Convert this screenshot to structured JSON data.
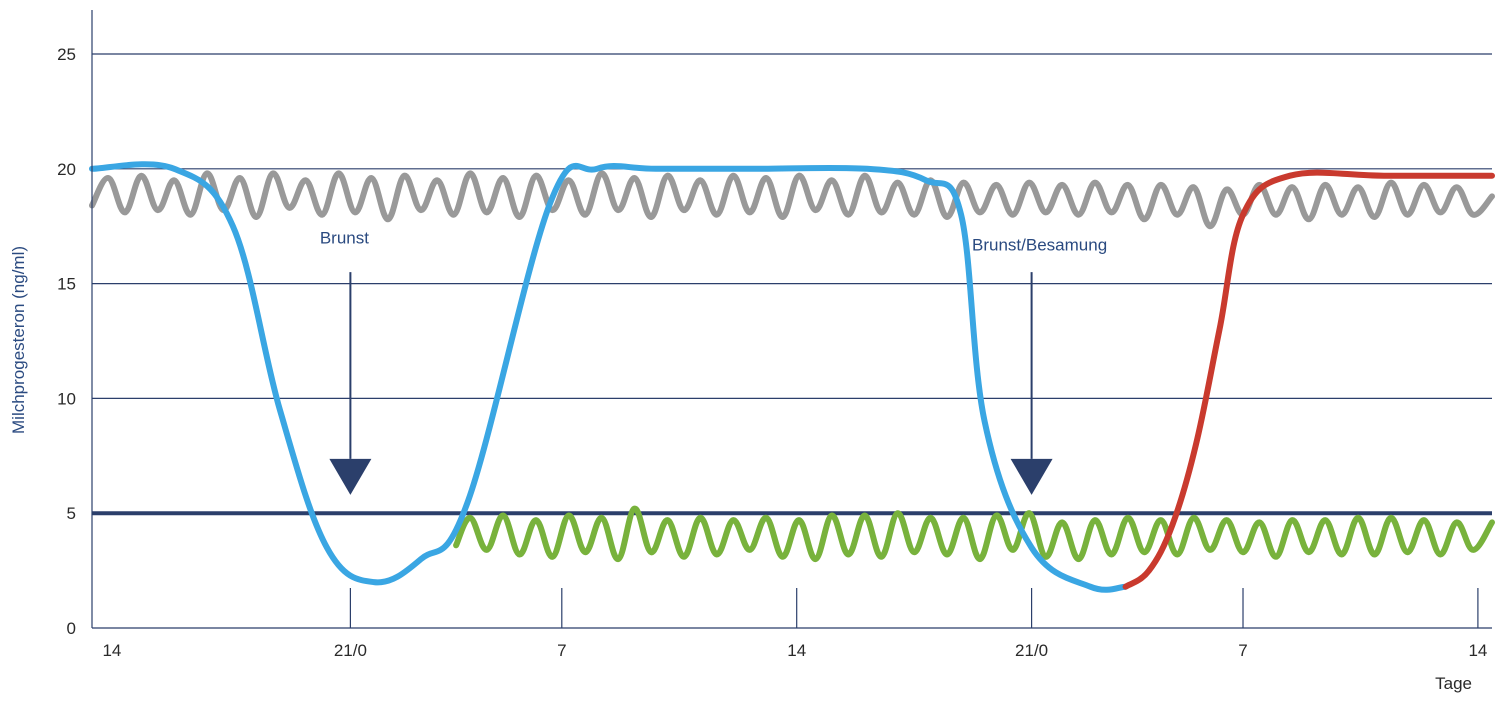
{
  "chart_data": {
    "type": "line",
    "title": "",
    "ylabel": "Milchprogesteron (ng/ml)",
    "xlabel": "Tage",
    "ylim": [
      0,
      26
    ],
    "xlim": [
      0,
      59.6
    ],
    "y_ticks": [
      0,
      5,
      10,
      15,
      20,
      25
    ],
    "grid": "horizontal",
    "x_ticks": [
      {
        "x": 0.7,
        "label": "14"
      },
      {
        "x": 11.0,
        "label": "21/0"
      },
      {
        "x": 20.0,
        "label": "7"
      },
      {
        "x": 30.0,
        "label": "14"
      },
      {
        "x": 40.0,
        "label": "21/0"
      },
      {
        "x": 49.0,
        "label": "7"
      },
      {
        "x": 59.0,
        "label": "14"
      }
    ],
    "threshold": {
      "y": 5,
      "color": "#2b3f6b"
    },
    "annotations": [
      {
        "label": "Brunst",
        "x": 11.0,
        "y_text": 17.0,
        "y_from": 15.5,
        "y_to": 5.8
      },
      {
        "label": "Brunst/Besamung",
        "x": 40.0,
        "y_text": 16.7,
        "y_from": 15.5,
        "y_to": 5.8
      }
    ],
    "series": [
      {
        "color": "#3aa6e3",
        "x": [
          0,
          3.5,
          6,
          8,
          10,
          12,
          14,
          16,
          19.5,
          21.5,
          24,
          28,
          33,
          35.5,
          37,
          38,
          40,
          42.5,
          44
        ],
        "y": [
          20,
          20,
          17.5,
          9.5,
          3.5,
          2,
          3,
          5.5,
          18.5,
          20,
          20,
          20,
          20,
          19.5,
          18,
          9,
          3.5,
          1.8,
          1.8
        ]
      },
      {
        "color": "#c93a2e",
        "x": [
          44,
          45,
          46,
          47,
          48,
          49,
          51,
          55,
          59.6
        ],
        "y": [
          1.8,
          2.5,
          4.5,
          8,
          13,
          18,
          19.7,
          19.7,
          19.7
        ]
      },
      {
        "color": "#999999",
        "x": [
          0,
          0.7,
          1.4,
          2.1,
          2.8,
          3.5,
          4.2,
          4.9,
          5.6,
          6.3,
          7.0,
          7.7,
          8.4,
          9.1,
          9.8,
          10.5,
          11.2,
          11.9,
          12.6,
          13.3,
          14.0,
          14.7,
          15.4,
          16.1,
          16.8,
          17.5,
          18.2,
          18.9,
          19.6,
          20.3,
          21.0,
          21.7,
          22.4,
          23.1,
          23.8,
          24.5,
          25.2,
          25.9,
          26.6,
          27.3,
          28.0,
          28.7,
          29.4,
          30.1,
          30.8,
          31.5,
          32.2,
          32.9,
          33.6,
          34.3,
          35.0,
          35.7,
          36.4,
          37.1,
          37.8,
          38.5,
          39.2,
          39.9,
          40.6,
          41.3,
          42.0,
          42.7,
          43.4,
          44.1,
          44.8,
          45.5,
          46.2,
          46.9,
          47.6,
          48.3,
          49.0,
          49.7,
          50.4,
          51.1,
          51.8,
          52.5,
          53.2,
          53.9,
          54.6,
          55.3,
          56.0,
          56.7,
          57.4,
          58.1,
          58.8,
          59.6
        ],
        "y": [
          18.4,
          19.6,
          18.1,
          19.7,
          18.2,
          19.5,
          18.0,
          19.8,
          18.2,
          19.6,
          17.9,
          19.8,
          18.3,
          19.5,
          18.0,
          19.8,
          18.1,
          19.6,
          17.8,
          19.7,
          18.2,
          19.5,
          18.0,
          19.8,
          18.1,
          19.6,
          17.9,
          19.7,
          18.2,
          19.5,
          18.0,
          19.8,
          18.2,
          19.6,
          17.9,
          19.7,
          18.2,
          19.5,
          18.0,
          19.7,
          18.1,
          19.6,
          17.9,
          19.7,
          18.2,
          19.5,
          18.0,
          19.7,
          18.1,
          19.4,
          18.0,
          19.5,
          17.9,
          19.4,
          18.1,
          19.3,
          18.0,
          19.4,
          18.1,
          19.3,
          18.0,
          19.4,
          18.1,
          19.3,
          17.8,
          19.3,
          18.0,
          19.2,
          17.5,
          19.1,
          18.0,
          19.3,
          18.0,
          19.2,
          17.8,
          19.3,
          18.0,
          19.2,
          17.9,
          19.4,
          18.0,
          19.3,
          18.1,
          19.2,
          18.0,
          18.8
        ],
        "points": [
          [
            0,
            18.5
          ],
          [
            0.4,
            19.6
          ],
          [
            1,
            18.1
          ],
          [
            1.6,
            19.7
          ],
          [
            2.3,
            18.2
          ],
          [
            3.0,
            19.5
          ],
          [
            3.7,
            18.0
          ],
          [
            4.4,
            19.8
          ],
          [
            5.1,
            18.2
          ],
          [
            5.8,
            19.6
          ],
          [
            6.5,
            17.9
          ],
          [
            7.2,
            19.8
          ],
          [
            7.9,
            18.3
          ],
          [
            8.6,
            19.5
          ],
          [
            9.3,
            18.0
          ],
          [
            10.0,
            19.8
          ],
          [
            10.7,
            18.1
          ],
          [
            11.4,
            19.6
          ],
          [
            12.1,
            17.8
          ],
          [
            12.8,
            19.7
          ],
          [
            13.5,
            18.2
          ],
          [
            14.2,
            19.5
          ],
          [
            14.9,
            18.0
          ],
          [
            15.6,
            19.8
          ],
          [
            16.3,
            18.1
          ],
          [
            17.0,
            19.6
          ],
          [
            17.7,
            17.9
          ],
          [
            18.4,
            19.7
          ],
          [
            19.1,
            18.2
          ],
          [
            19.8,
            19.5
          ],
          [
            20.5,
            18.0
          ],
          [
            21.2,
            19.8
          ],
          [
            21.9,
            18.2
          ],
          [
            22.6,
            19.6
          ],
          [
            23.3,
            17.9
          ],
          [
            24.0,
            19.7
          ],
          [
            24.7,
            18.2
          ],
          [
            25.4,
            19.5
          ],
          [
            26.1,
            18.0
          ],
          [
            26.8,
            19.7
          ],
          [
            27.5,
            18.1
          ],
          [
            28.2,
            19.6
          ],
          [
            28.9,
            17.9
          ],
          [
            29.6,
            19.7
          ],
          [
            30.3,
            18.2
          ],
          [
            31.0,
            19.5
          ],
          [
            31.7,
            18.0
          ],
          [
            32.4,
            19.7
          ],
          [
            33.1,
            18.1
          ],
          [
            33.8,
            19.4
          ],
          [
            34.5,
            18.0
          ],
          [
            35.2,
            19.5
          ],
          [
            35.9,
            17.9
          ],
          [
            36.6,
            19.4
          ],
          [
            37.3,
            18.1
          ],
          [
            38.0,
            19.3
          ],
          [
            38.7,
            18.0
          ],
          [
            39.4,
            19.4
          ],
          [
            40.1,
            18.1
          ],
          [
            40.8,
            19.3
          ],
          [
            41.5,
            18.0
          ],
          [
            42.2,
            19.4
          ],
          [
            42.9,
            18.1
          ],
          [
            43.6,
            19.3
          ],
          [
            44.3,
            17.8
          ],
          [
            45.0,
            19.3
          ],
          [
            45.7,
            18.0
          ],
          [
            46.4,
            19.2
          ],
          [
            47.1,
            17.5
          ],
          [
            47.8,
            19.1
          ],
          [
            48.5,
            18.0
          ],
          [
            49.2,
            19.3
          ],
          [
            49.9,
            18.0
          ],
          [
            50.6,
            19.2
          ],
          [
            51.3,
            17.8
          ],
          [
            52.0,
            19.3
          ],
          [
            52.7,
            18.0
          ],
          [
            53.4,
            19.2
          ],
          [
            54.1,
            17.9
          ],
          [
            54.8,
            19.4
          ],
          [
            55.5,
            18.0
          ],
          [
            56.2,
            19.3
          ],
          [
            56.9,
            18.1
          ],
          [
            57.6,
            19.2
          ],
          [
            58.3,
            18.0
          ],
          [
            59.0,
            18.6
          ],
          [
            59.6,
            18.8
          ]
        ]
      },
      {
        "color": "#78b23c",
        "x": [
          15.5,
          16.1,
          16.8,
          17.5,
          18.2,
          18.9,
          19.6,
          20.3,
          21.0,
          21.7,
          22.4,
          23.1,
          23.8,
          24.5,
          25.2,
          25.9,
          26.6,
          27.3,
          28.0,
          28.7,
          29.4,
          30.1,
          30.8,
          31.5,
          32.2,
          32.9,
          33.6,
          34.3,
          35.0,
          35.7,
          36.4,
          37.1,
          37.8,
          38.5,
          39.2,
          39.9,
          40.6,
          41.3,
          42.0,
          42.7,
          43.4,
          44.1,
          44.8,
          45.5,
          46.2,
          46.9,
          47.6,
          48.3,
          49.0,
          49.7,
          50.4,
          51.1,
          51.8,
          52.5,
          53.2,
          53.9,
          54.6,
          55.3,
          56.0,
          56.7,
          57.4,
          58.1,
          58.8,
          59.6
        ],
        "y": [
          3.6,
          4.8,
          3.4,
          4.9,
          3.2,
          4.7,
          3.1,
          4.9,
          3.3,
          4.8,
          3.0,
          5.2,
          3.3,
          4.7,
          3.1,
          4.8,
          3.2,
          4.7,
          3.4,
          4.8,
          3.1,
          4.7,
          3.0,
          4.9,
          3.2,
          4.9,
          3.1,
          5.0,
          3.3,
          4.8,
          3.2,
          4.8,
          3.0,
          4.9,
          3.4,
          5.0,
          3.1,
          4.6,
          3.0,
          4.7,
          3.2,
          4.8,
          3.3,
          4.7,
          3.2,
          4.8,
          3.4,
          4.7,
          3.3,
          4.6,
          3.1,
          4.7,
          3.3,
          4.7,
          3.2,
          4.8,
          3.2,
          4.8,
          3.3,
          4.7,
          3.2,
          4.6,
          3.4,
          4.6
        ]
      }
    ]
  }
}
